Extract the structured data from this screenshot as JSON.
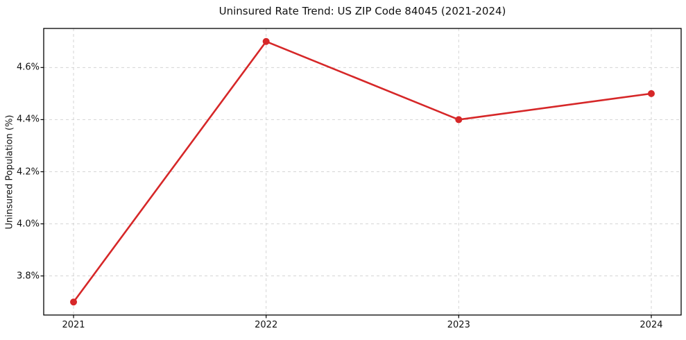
{
  "chart_data": {
    "type": "line",
    "title": "Uninsured Rate Trend: US ZIP Code 84045 (2021-2024)",
    "xlabel": "",
    "ylabel": "Uninsured Population (%)",
    "x": [
      2021,
      2022,
      2023,
      2024
    ],
    "values": [
      3.7,
      4.7,
      4.4,
      4.5
    ],
    "xtick_labels": [
      "2021",
      "2022",
      "2023",
      "2024"
    ],
    "xticks": [
      2021,
      2022,
      2023,
      2024
    ],
    "ytick_labels": [
      "3.8%",
      "4.0%",
      "4.2%",
      "4.4%",
      "4.6%"
    ],
    "yticks": [
      3.8,
      4.0,
      4.2,
      4.4,
      4.6
    ],
    "xlim": [
      2020.845,
      2024.155
    ],
    "ylim": [
      3.65,
      4.75
    ],
    "grid": true,
    "grid_style": "dashed",
    "legend": "none",
    "marker": "circle",
    "colors": {
      "line": "#d62728",
      "marker": "#d62728",
      "grid": "#d4d4d4",
      "spine": "#000000",
      "text": "#111111",
      "background": "#ffffff"
    }
  }
}
